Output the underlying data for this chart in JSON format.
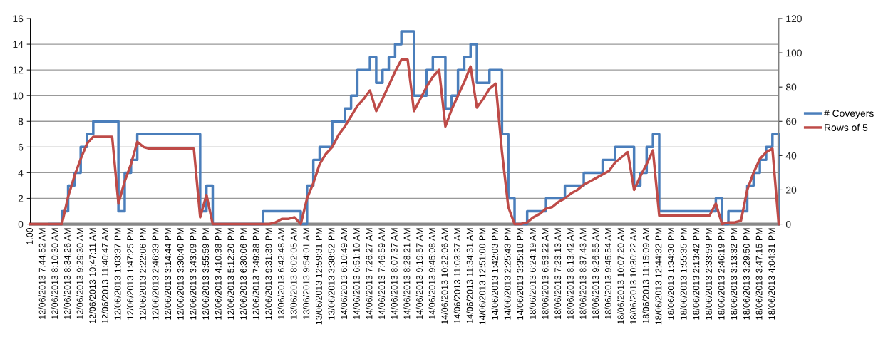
{
  "chart_data": {
    "type": "line",
    "categories": [
      "1.00",
      null,
      "12/06/2013 7:44:52 AM",
      null,
      "12/06/2013 8:10:30 AM",
      null,
      "12/06/2013 8:34:26 AM",
      null,
      "12/06/2013 9:29:30 AM",
      null,
      "12/06/2013 10:47:11 AM",
      null,
      "12/06/2013 11:40:47 AM",
      null,
      "12/06/2013 1:03:37 PM",
      null,
      "12/06/2013 1:47:25 PM",
      null,
      "12/06/2013 2:22:06 PM",
      null,
      "12/06/2013 2:46:33 PM",
      null,
      "12/06/2013 3:14:44 PM",
      null,
      "12/06/2013 3:30:40 PM",
      null,
      "12/06/2013 3:43:09 PM",
      null,
      "12/06/2013 3:55:59 PM",
      null,
      "12/06/2013 4:10:38 PM",
      null,
      "12/06/2013 5:12:20 PM",
      null,
      "12/06/2013 6:30:06 PM",
      null,
      "12/06/2013 7:49:38 PM",
      null,
      "12/06/2013 9:31:39 PM",
      null,
      "13/06/2013 6:42:48 AM",
      null,
      "13/06/2013 8:02:05 AM",
      null,
      "13/06/2013 9:54:01 AM",
      null,
      "13/06/2013 12:59:31 PM",
      null,
      "13/06/2013 3:38:52 PM",
      null,
      "14/06/2013 6:10:49 AM",
      null,
      "14/06/2013 6:51:10 AM",
      null,
      "14/06/2013 7:26:27 AM",
      null,
      "14/06/2013 7:46:59 AM",
      null,
      "14/06/2013 8:07:37 AM",
      null,
      "14/06/2013 8:28:21 AM",
      null,
      "14/06/2013 9:19:57 AM",
      null,
      "14/06/2013 9:45:08 AM",
      null,
      "14/06/2013 10:22:06 AM",
      null,
      "14/06/2013 11:03:37 AM",
      null,
      "14/06/2013 11:34:31 AM",
      null,
      "14/06/2013 12:51:00 PM",
      null,
      "14/06/2013 1:42:03 PM",
      null,
      "14/06/2013 2:25:43 PM",
      null,
      "14/06/2013 3:35:18 PM",
      null,
      "18/06/2013 6:24:19 AM",
      null,
      "18/06/2013 6:53:22 AM",
      null,
      "18/06/2013 7:23:13 AM",
      null,
      "18/06/2013 8:13:42 AM",
      null,
      "18/06/2013 8:37:43 AM",
      null,
      "18/06/2013 9:26:55 AM",
      null,
      "18/06/2013 9:45:54 AM",
      null,
      "18/06/2013 10:07:20 AM",
      null,
      "18/06/2013 10:30:22 AM",
      null,
      "18/06/2013 11:15:09 AM",
      null,
      "18/06/2013 12:44:32 PM",
      null,
      "18/06/2013 1:34:30 PM",
      null,
      "18/06/2013 1:55:35 PM",
      null,
      "18/06/2013 2:13:42 PM",
      null,
      "18/06/2013 2:33:59 PM",
      null,
      "18/06/2013 2:46:19 PM",
      null,
      "18/06/2013 3:13:32 PM",
      null,
      "18/06/2013 3:29:50 PM",
      null,
      "18/06/2013 3:47:15 PM",
      null,
      "18/06/2013 4:04:31 PM",
      null
    ],
    "series": [
      {
        "name": "# Coveyers",
        "color": "#4a7ebb",
        "type": "step",
        "values": [
          null,
          null,
          null,
          0,
          0,
          1,
          3,
          4,
          6,
          7,
          8,
          8,
          8,
          8,
          1,
          4,
          5,
          7,
          7,
          7,
          7,
          7,
          7,
          7,
          7,
          7,
          7,
          1,
          3,
          0,
          0,
          0,
          0,
          0,
          0,
          0,
          0,
          1,
          1,
          1,
          1,
          1,
          1,
          0,
          3,
          5,
          6,
          6,
          8,
          8,
          9,
          10,
          12,
          12,
          13,
          11,
          12,
          13,
          14,
          15,
          15,
          10,
          10,
          12,
          13,
          13,
          9,
          10,
          12,
          13,
          14,
          11,
          11,
          12,
          12,
          7,
          2,
          0,
          0,
          1,
          1,
          1,
          2,
          2,
          2,
          3,
          3,
          3,
          4,
          4,
          4,
          5,
          5,
          6,
          6,
          6,
          3,
          4,
          6,
          7,
          1,
          1,
          1,
          1,
          1,
          1,
          1,
          1,
          1,
          2,
          0,
          1,
          1,
          1,
          3,
          4,
          5,
          6,
          7,
          0
        ]
      },
      {
        "name": "Rows of 5",
        "color": "#be4b48",
        "axis": "y2",
        "values": [
          0,
          0,
          0,
          0,
          0,
          0,
          16,
          28,
          38,
          47,
          51,
          51,
          51,
          51,
          12,
          25,
          35,
          48,
          45,
          44,
          44,
          44,
          44,
          44,
          44,
          44,
          44,
          4,
          17,
          0,
          0,
          0,
          0,
          0,
          0,
          0,
          0,
          0,
          0,
          1,
          3,
          3,
          4,
          0,
          15,
          24,
          35,
          41,
          45,
          52,
          57,
          63,
          69,
          73,
          78,
          66,
          73,
          81,
          89,
          96,
          96,
          66,
          73,
          80,
          86,
          90,
          57,
          67,
          75,
          83,
          92,
          68,
          73,
          79,
          82,
          42,
          10,
          0,
          0,
          1,
          4,
          6,
          9,
          10,
          13,
          15,
          18,
          20,
          23,
          25,
          27,
          29,
          31,
          36,
          39,
          42,
          20,
          28,
          35,
          43,
          5,
          5,
          5,
          5,
          5,
          5,
          5,
          5,
          5,
          12,
          0,
          1,
          1,
          2,
          20,
          30,
          38,
          42,
          44,
          0
        ]
      }
    ],
    "ylim": [
      0,
      16
    ],
    "yticks": [
      0,
      2,
      4,
      6,
      8,
      10,
      12,
      14,
      16
    ],
    "y2lim": [
      0,
      120
    ],
    "y2ticks": [
      0,
      20,
      40,
      60,
      80,
      100,
      120
    ],
    "grid": "y",
    "legend": "right",
    "line_style": "solid",
    "marker": "none"
  }
}
